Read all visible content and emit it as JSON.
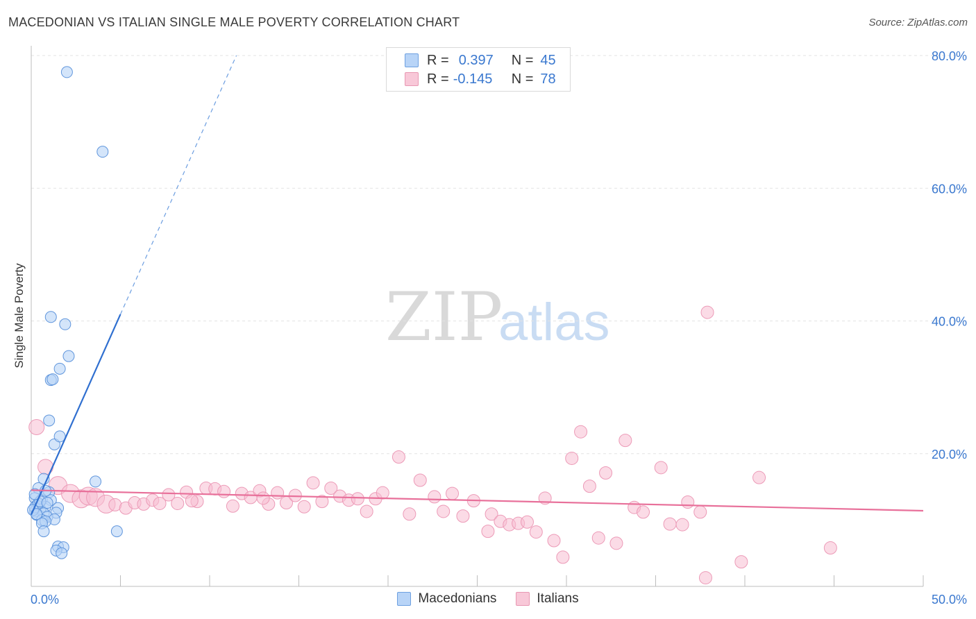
{
  "title": "MACEDONIAN VS ITALIAN SINGLE MALE POVERTY CORRELATION CHART",
  "source": "Source: ZipAtlas.com",
  "legend_stats": [
    {
      "r_label": "R =",
      "r_value": "0.397",
      "n_label": "N =",
      "n_value": "45"
    },
    {
      "r_label": "R =",
      "r_value": "-0.145",
      "n_label": "N =",
      "n_value": "78"
    }
  ],
  "legend_bottom": [
    "Macedonians",
    "Italians"
  ],
  "watermark": {
    "zip": "ZIP",
    "atlas": "atlas"
  },
  "colors": {
    "blue": "#3a78cf",
    "blue_fill": "#b8d4f7",
    "pink": "#e8709a",
    "pink_fill": "#f8c8d8"
  },
  "chart_data": {
    "type": "scatter",
    "title": "MACEDONIAN VS ITALIAN SINGLE MALE POVERTY CORRELATION CHART",
    "xlabel": "",
    "ylabel": "Single Male Poverty",
    "xlim": [
      0,
      50
    ],
    "ylim": [
      0,
      80
    ],
    "x_tick_labels": [
      "0.0%",
      "50.0%"
    ],
    "y_ticks": [
      20,
      40,
      60,
      80
    ],
    "y_tick_labels": [
      "20.0%",
      "40.0%",
      "60.0%",
      "80.0%"
    ],
    "series": [
      {
        "name": "Macedonians",
        "R": 0.397,
        "N": 45,
        "trend": {
          "x0": 0.0,
          "y0": 10.8,
          "x1": 5.0,
          "y1": 41.0,
          "dash_x1": 11.5,
          "dash_y1": 80.0
        },
        "points": [
          [
            2.0,
            77.5
          ],
          [
            4.0,
            65.5
          ],
          [
            1.1,
            40.6
          ],
          [
            1.9,
            39.5
          ],
          [
            2.1,
            34.7
          ],
          [
            1.6,
            32.8
          ],
          [
            1.1,
            31.1
          ],
          [
            1.2,
            31.2
          ],
          [
            1.0,
            25.0
          ],
          [
            1.3,
            21.4
          ],
          [
            1.6,
            22.6
          ],
          [
            0.7,
            16.2
          ],
          [
            3.6,
            15.8
          ],
          [
            0.4,
            14.8
          ],
          [
            1.0,
            14.2
          ],
          [
            0.2,
            13.3
          ],
          [
            0.6,
            13.1
          ],
          [
            1.1,
            13.0
          ],
          [
            0.3,
            12.2
          ],
          [
            0.8,
            12.0
          ],
          [
            1.5,
            11.8
          ],
          [
            0.5,
            11.6
          ],
          [
            0.2,
            11.3
          ],
          [
            0.7,
            11.0
          ],
          [
            1.4,
            11.1
          ],
          [
            0.3,
            10.8
          ],
          [
            0.9,
            10.5
          ],
          [
            0.2,
            11.9
          ],
          [
            0.4,
            12.5
          ],
          [
            0.1,
            11.5
          ],
          [
            0.6,
            10.0
          ],
          [
            1.3,
            10.1
          ],
          [
            0.8,
            9.8
          ],
          [
            0.6,
            9.5
          ],
          [
            0.7,
            8.3
          ],
          [
            4.8,
            8.3
          ],
          [
            1.5,
            6.0
          ],
          [
            1.8,
            5.9
          ],
          [
            1.4,
            5.4
          ],
          [
            1.7,
            5.0
          ],
          [
            0.3,
            10.9
          ],
          [
            0.5,
            12.8
          ],
          [
            0.9,
            12.6
          ],
          [
            0.2,
            13.9
          ],
          [
            0.8,
            14.4
          ]
        ]
      },
      {
        "name": "Italians",
        "R": -0.145,
        "N": 78,
        "trend": {
          "x0": 0.0,
          "y0": 14.5,
          "x1": 50.0,
          "y1": 11.4
        },
        "points": [
          [
            0.3,
            24.0
          ],
          [
            0.8,
            18.0
          ],
          [
            1.5,
            15.2
          ],
          [
            2.2,
            14.0
          ],
          [
            2.8,
            13.2
          ],
          [
            3.2,
            13.6
          ],
          [
            3.6,
            13.4
          ],
          [
            4.2,
            12.4
          ],
          [
            4.7,
            12.3
          ],
          [
            5.3,
            11.8
          ],
          [
            5.8,
            12.6
          ],
          [
            6.3,
            12.4
          ],
          [
            6.8,
            13.0
          ],
          [
            7.2,
            12.5
          ],
          [
            7.7,
            13.8
          ],
          [
            8.2,
            12.5
          ],
          [
            8.7,
            14.2
          ],
          [
            9.3,
            12.8
          ],
          [
            9.8,
            14.8
          ],
          [
            10.3,
            14.7
          ],
          [
            10.8,
            14.3
          ],
          [
            11.3,
            12.1
          ],
          [
            11.8,
            14.0
          ],
          [
            12.3,
            13.4
          ],
          [
            12.8,
            14.4
          ],
          [
            13.3,
            12.4
          ],
          [
            13.8,
            14.1
          ],
          [
            14.3,
            12.6
          ],
          [
            14.8,
            13.7
          ],
          [
            15.3,
            12.0
          ],
          [
            15.8,
            15.6
          ],
          [
            16.3,
            12.8
          ],
          [
            16.8,
            14.8
          ],
          [
            17.3,
            13.6
          ],
          [
            17.8,
            13.0
          ],
          [
            18.3,
            13.2
          ],
          [
            18.8,
            11.3
          ],
          [
            19.3,
            13.2
          ],
          [
            19.7,
            14.1
          ],
          [
            20.6,
            19.5
          ],
          [
            21.2,
            10.9
          ],
          [
            21.8,
            16.0
          ],
          [
            22.6,
            13.5
          ],
          [
            23.1,
            11.3
          ],
          [
            23.6,
            14.0
          ],
          [
            24.2,
            10.6
          ],
          [
            24.8,
            12.9
          ],
          [
            25.6,
            8.3
          ],
          [
            25.8,
            10.9
          ],
          [
            26.3,
            9.8
          ],
          [
            26.8,
            9.3
          ],
          [
            27.3,
            9.5
          ],
          [
            27.8,
            9.7
          ],
          [
            28.3,
            8.2
          ],
          [
            28.8,
            13.3
          ],
          [
            29.3,
            6.9
          ],
          [
            29.8,
            4.4
          ],
          [
            30.3,
            19.3
          ],
          [
            30.8,
            23.3
          ],
          [
            31.3,
            15.1
          ],
          [
            31.8,
            7.3
          ],
          [
            32.2,
            17.1
          ],
          [
            32.8,
            6.5
          ],
          [
            33.3,
            22.0
          ],
          [
            33.8,
            11.9
          ],
          [
            34.3,
            11.2
          ],
          [
            35.3,
            17.9
          ],
          [
            35.8,
            9.4
          ],
          [
            36.5,
            9.3
          ],
          [
            36.8,
            12.7
          ],
          [
            37.5,
            11.2
          ],
          [
            37.8,
            1.3
          ],
          [
            37.9,
            41.3
          ],
          [
            39.8,
            3.7
          ],
          [
            40.8,
            16.4
          ],
          [
            44.8,
            5.8
          ],
          [
            9.0,
            12.9
          ],
          [
            13.0,
            13.3
          ]
        ]
      }
    ]
  }
}
